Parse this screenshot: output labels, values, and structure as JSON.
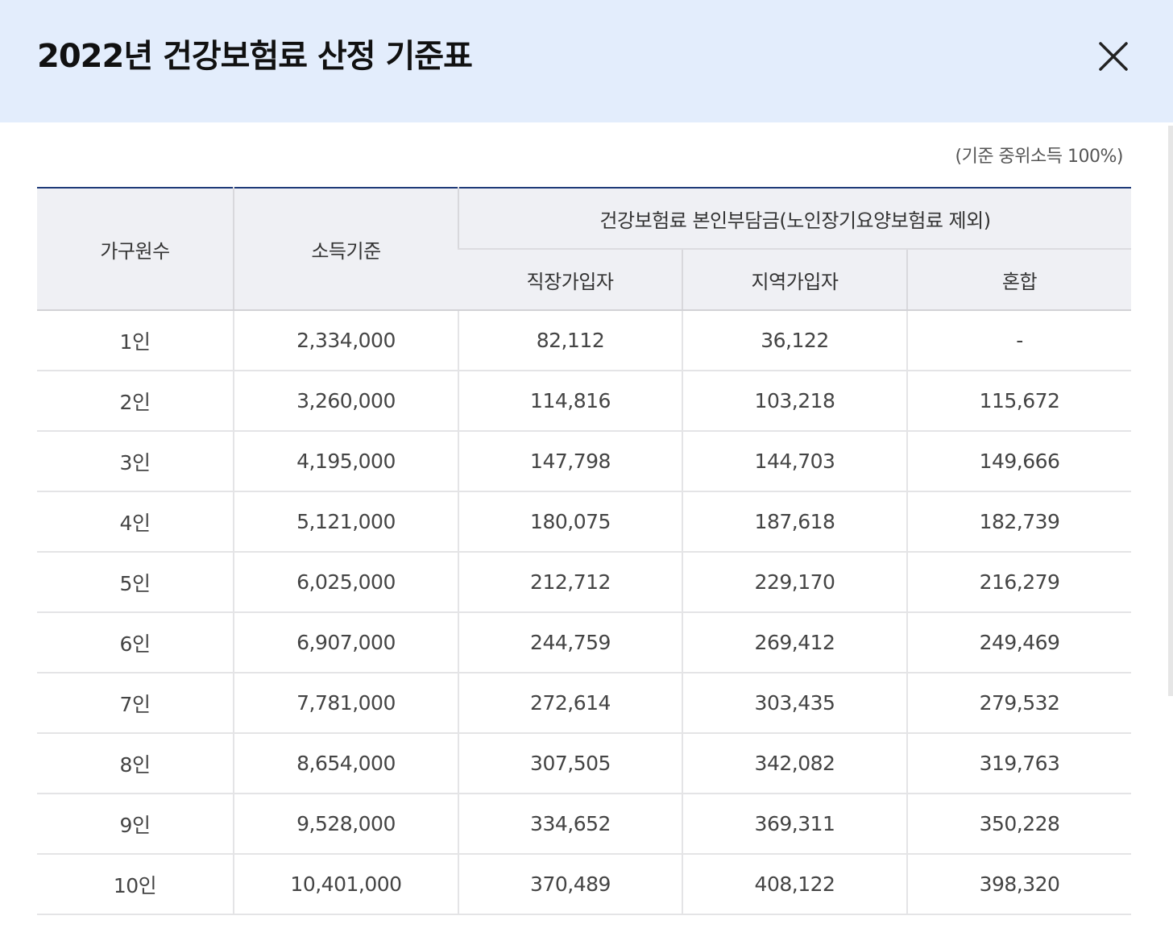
{
  "modal": {
    "title": "2022년 건강보험료 산정 기준표",
    "close_icon": "close-icon"
  },
  "caption": "(기준 중위소득 100%)",
  "table": {
    "headers": {
      "household": "가구원수",
      "income": "소득기준",
      "premium_group": "건강보험료 본인부담금(노인장기요양보험료 제외)",
      "workplace": "직장가입자",
      "regional": "지역가입자",
      "mixed": "혼합"
    },
    "rows": [
      {
        "household": "1인",
        "income": "2,334,000",
        "workplace": "82,112",
        "regional": "36,122",
        "mixed": "-"
      },
      {
        "household": "2인",
        "income": "3,260,000",
        "workplace": "114,816",
        "regional": "103,218",
        "mixed": "115,672"
      },
      {
        "household": "3인",
        "income": "4,195,000",
        "workplace": "147,798",
        "regional": "144,703",
        "mixed": "149,666"
      },
      {
        "household": "4인",
        "income": "5,121,000",
        "workplace": "180,075",
        "regional": "187,618",
        "mixed": "182,739"
      },
      {
        "household": "5인",
        "income": "6,025,000",
        "workplace": "212,712",
        "regional": "229,170",
        "mixed": "216,279"
      },
      {
        "household": "6인",
        "income": "6,907,000",
        "workplace": "244,759",
        "regional": "269,412",
        "mixed": "249,469"
      },
      {
        "household": "7인",
        "income": "7,781,000",
        "workplace": "272,614",
        "regional": "303,435",
        "mixed": "279,532"
      },
      {
        "household": "8인",
        "income": "8,654,000",
        "workplace": "307,505",
        "regional": "342,082",
        "mixed": "319,763"
      },
      {
        "household": "9인",
        "income": "9,528,000",
        "workplace": "334,652",
        "regional": "369,311",
        "mixed": "350,228"
      },
      {
        "household": "10인",
        "income": "10,401,000",
        "workplace": "370,489",
        "regional": "408,122",
        "mixed": "398,320"
      }
    ]
  }
}
